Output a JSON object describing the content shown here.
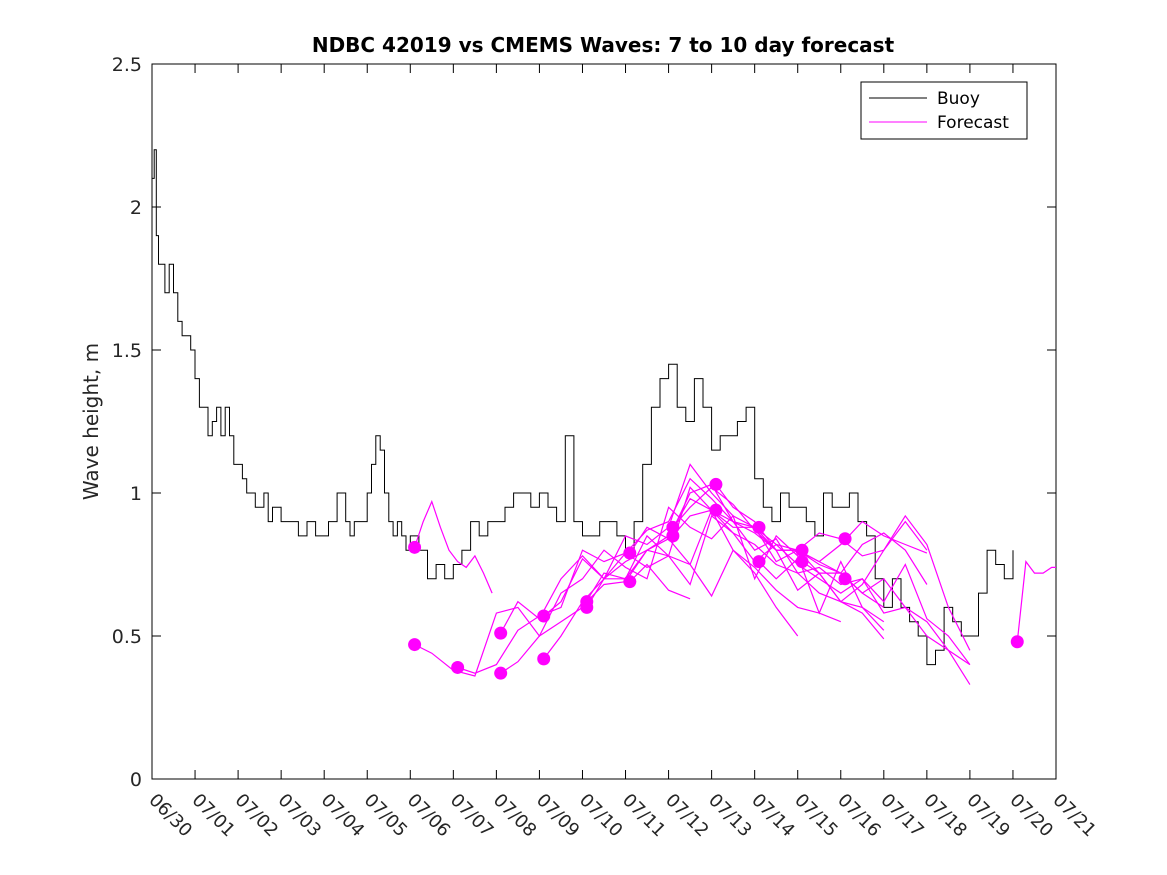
{
  "chart_data": {
    "type": "line",
    "title": "NDBC 42019 vs CMEMS Waves: 7 to 10 day forecast",
    "ylabel": "Wave height, m",
    "xlabel": "",
    "xlim": [
      0,
      21
    ],
    "ylim": [
      0,
      2.5
    ],
    "y_ticks": [
      "0",
      "0.5",
      "1",
      "1.5",
      "2",
      "2.5"
    ],
    "x_ticks": [
      "06/30",
      "07/01",
      "07/02",
      "07/03",
      "07/04",
      "07/05",
      "07/06",
      "07/07",
      "07/08",
      "07/09",
      "07/10",
      "07/11",
      "07/12",
      "07/13",
      "07/14",
      "07/15",
      "07/16",
      "07/17",
      "07/18",
      "07/19",
      "07/20",
      "07/21"
    ],
    "legend": {
      "placement": "top-right",
      "entries": [
        "Buoy",
        "Forecast"
      ]
    },
    "colors": {
      "buoy": "#000000",
      "forecast": "#ff00ff"
    },
    "buoy": {
      "name": "Buoy",
      "x": [
        0,
        0.05,
        0.1,
        0.15,
        0.2,
        0.3,
        0.4,
        0.5,
        0.6,
        0.7,
        0.8,
        0.9,
        1.0,
        1.1,
        1.2,
        1.3,
        1.4,
        1.5,
        1.6,
        1.7,
        1.8,
        1.9,
        2.0,
        2.1,
        2.2,
        2.3,
        2.4,
        2.5,
        2.6,
        2.7,
        2.8,
        3.0,
        3.2,
        3.4,
        3.6,
        3.8,
        4.0,
        4.1,
        4.2,
        4.3,
        4.4,
        4.5,
        4.6,
        4.7,
        4.8,
        4.9,
        5.0,
        5.1,
        5.2,
        5.3,
        5.4,
        5.5,
        5.6,
        5.7,
        5.8,
        5.9,
        6.0,
        6.2,
        6.4,
        6.6,
        6.8,
        7.0,
        7.2,
        7.4,
        7.6,
        7.8,
        8.0,
        8.2,
        8.4,
        8.6,
        8.8,
        9.0,
        9.2,
        9.4,
        9.6,
        9.8,
        10.0,
        10.2,
        10.4,
        10.6,
        10.8,
        11.0,
        11.2,
        11.4,
        11.6,
        11.8,
        12.0,
        12.2,
        12.4,
        12.6,
        12.8,
        13.0,
        13.2,
        13.4,
        13.6,
        13.8,
        14.0,
        14.2,
        14.4,
        14.6,
        14.8,
        15.0,
        15.2,
        15.4,
        15.6,
        15.8,
        16.0,
        16.2,
        16.4,
        16.6,
        16.8,
        17.0,
        17.2,
        17.4,
        17.6,
        17.8,
        18.0,
        18.2,
        18.4,
        18.6,
        18.8,
        19.0,
        19.2,
        19.4,
        19.6,
        19.8,
        20.0
      ],
      "y": [
        2.1,
        2.2,
        1.9,
        1.8,
        1.8,
        1.7,
        1.8,
        1.7,
        1.6,
        1.55,
        1.55,
        1.5,
        1.4,
        1.3,
        1.3,
        1.2,
        1.25,
        1.3,
        1.2,
        1.3,
        1.2,
        1.1,
        1.1,
        1.05,
        1.0,
        1.0,
        0.95,
        0.95,
        1.0,
        0.9,
        0.95,
        0.9,
        0.9,
        0.85,
        0.9,
        0.85,
        0.85,
        0.9,
        0.9,
        1.0,
        1.0,
        0.9,
        0.85,
        0.9,
        0.9,
        0.9,
        1.0,
        1.1,
        1.2,
        1.15,
        1.0,
        0.9,
        0.85,
        0.9,
        0.85,
        0.8,
        0.85,
        0.8,
        0.7,
        0.75,
        0.7,
        0.75,
        0.8,
        0.9,
        0.85,
        0.9,
        0.9,
        0.95,
        1.0,
        1.0,
        0.95,
        1.0,
        0.95,
        0.9,
        1.2,
        0.9,
        0.85,
        0.85,
        0.9,
        0.9,
        0.85,
        0.8,
        0.9,
        1.1,
        1.3,
        1.4,
        1.45,
        1.3,
        1.25,
        1.4,
        1.3,
        1.15,
        1.2,
        1.2,
        1.25,
        1.3,
        1.05,
        0.95,
        0.9,
        1.0,
        0.95,
        0.95,
        0.9,
        0.85,
        1.0,
        0.95,
        0.95,
        1.0,
        0.9,
        0.85,
        0.7,
        0.6,
        0.7,
        0.6,
        0.55,
        0.5,
        0.4,
        0.45,
        0.6,
        0.55,
        0.5,
        0.5,
        0.65,
        0.8,
        0.75,
        0.7,
        0.8
      ]
    },
    "forecast": {
      "name": "Forecast",
      "runs": [
        {
          "x": [
            6.1,
            6.3,
            6.5,
            6.7,
            6.9,
            7.1,
            7.3,
            7.5,
            7.7,
            7.9
          ],
          "y": [
            0.81,
            0.9,
            0.97,
            0.88,
            0.8,
            0.76,
            0.74,
            0.78,
            0.72,
            0.65
          ]
        },
        {
          "x": [
            6.1,
            6.5,
            7.0,
            7.5,
            8.0,
            8.5,
            9.0,
            9.5,
            10.0,
            10.5,
            11.0,
            11.5,
            12.0,
            12.5,
            13.0,
            13.5,
            14.0,
            14.5,
            15.0,
            15.5,
            16.0,
            16.5,
            17.0
          ],
          "y": [
            0.47,
            0.44,
            0.38,
            0.36,
            0.58,
            0.6,
            0.5,
            0.65,
            0.7,
            0.8,
            0.74,
            0.7,
            0.95,
            0.88,
            0.84,
            0.92,
            0.7,
            0.85,
            0.78,
            0.58,
            0.76,
            0.6,
            0.52
          ]
        },
        {
          "x": [
            7.1,
            7.5,
            8.0,
            8.5,
            9.0,
            9.5,
            10.0,
            10.5,
            11.0,
            11.5,
            12.0,
            12.5,
            13.0,
            13.5,
            14.0,
            14.5,
            15.0,
            15.5,
            16.0,
            16.5,
            17.0,
            17.5,
            18.0
          ],
          "y": [
            0.39,
            0.37,
            0.4,
            0.52,
            0.57,
            0.6,
            0.8,
            0.76,
            0.79,
            0.87,
            0.9,
            1.05,
            0.98,
            0.9,
            0.86,
            0.8,
            0.66,
            0.72,
            0.62,
            0.68,
            0.8,
            0.9,
            0.8
          ]
        },
        {
          "x": [
            8.1,
            8.5,
            9.0,
            9.5,
            10.0,
            10.5,
            11.0,
            11.5,
            12.0,
            12.5,
            13.0,
            13.5,
            14.0,
            14.5,
            15.0,
            15.5,
            16.0,
            16.5,
            17.0,
            17.5,
            18.0,
            18.5,
            19.0
          ],
          "y": [
            0.51,
            0.62,
            0.56,
            0.7,
            0.78,
            0.7,
            0.85,
            0.82,
            0.88,
            1.1,
            1.0,
            0.92,
            0.88,
            0.8,
            0.8,
            0.75,
            0.72,
            0.65,
            0.7,
            0.6,
            0.55,
            0.45,
            0.4
          ]
        },
        {
          "x": [
            8.1,
            8.5,
            9.0,
            9.5,
            10.0,
            10.5,
            11.0,
            11.5,
            12.0,
            12.5,
            13.0,
            13.5,
            14.0,
            14.5,
            15.0,
            15.5,
            16.0,
            16.5,
            17.0,
            17.5,
            18.0,
            18.5,
            19.0
          ],
          "y": [
            0.37,
            0.41,
            0.5,
            0.55,
            0.6,
            0.72,
            0.7,
            0.8,
            0.78,
            1.02,
            0.94,
            0.9,
            0.8,
            0.84,
            0.72,
            0.74,
            0.68,
            0.7,
            0.62,
            0.75,
            0.56,
            0.5,
            0.4
          ]
        },
        {
          "x": [
            9.1,
            9.5,
            10.0,
            10.5,
            11.0,
            11.5,
            12.0,
            12.5,
            13.0,
            13.5,
            14.0,
            14.5,
            15.0,
            15.5,
            16.0,
            16.5,
            17.0,
            17.5,
            18.0,
            18.5,
            19.0
          ],
          "y": [
            0.57,
            0.62,
            0.77,
            0.7,
            0.76,
            0.8,
            0.85,
            0.98,
            0.94,
            0.86,
            0.76,
            0.82,
            0.75,
            0.7,
            0.65,
            0.7,
            0.58,
            0.6,
            0.5,
            0.45,
            0.33
          ]
        },
        {
          "x": [
            9.1,
            9.5,
            10.0,
            10.5,
            11.0,
            11.5,
            12.0,
            12.5,
            13.0,
            13.5,
            14.0,
            14.5,
            15.0
          ],
          "y": [
            0.42,
            0.5,
            0.62,
            0.7,
            0.7,
            0.85,
            0.78,
            0.75,
            0.94,
            0.8,
            0.72,
            0.6,
            0.5
          ]
        },
        {
          "x": [
            10.1,
            10.5,
            11.0,
            11.5,
            12.0,
            12.5,
            13.0,
            13.5,
            14.0,
            14.5,
            15.0,
            15.5,
            16.0
          ],
          "y": [
            0.62,
            0.68,
            0.69,
            0.8,
            0.84,
            0.75,
            0.64,
            0.8,
            0.74,
            0.66,
            0.6,
            0.58,
            0.55
          ]
        },
        {
          "x": [
            10.1,
            10.5,
            11.0,
            11.5,
            12.0,
            12.5,
            13.0,
            13.5,
            14.0,
            14.5,
            15.0,
            15.5,
            16.0,
            16.5,
            17.0
          ],
          "y": [
            0.6,
            0.7,
            0.79,
            0.74,
            0.78,
            0.68,
            0.92,
            0.86,
            0.82,
            0.75,
            0.72,
            0.65,
            0.62,
            0.58,
            0.49
          ]
        },
        {
          "x": [
            11.1,
            11.5,
            12.0,
            12.5,
            13.0,
            13.5,
            14.0,
            14.5,
            15.0,
            15.5,
            16.0,
            16.5,
            17.0,
            17.5,
            18.0
          ],
          "y": [
            0.79,
            0.88,
            0.84,
            1.0,
            1.03,
            0.9,
            0.88,
            0.76,
            0.8,
            0.76,
            0.72,
            0.82,
            0.86,
            0.8,
            0.68
          ]
        },
        {
          "x": [
            11.1,
            11.5,
            12.0,
            12.5
          ],
          "y": [
            0.69,
            0.75,
            0.66,
            0.63
          ]
        },
        {
          "x": [
            12.1,
            12.5,
            13.0,
            13.5,
            14.0,
            14.5,
            15.0,
            15.5,
            16.0,
            16.5,
            17.0,
            17.5,
            18.0,
            18.5,
            19.0
          ],
          "y": [
            0.88,
            0.95,
            1.02,
            0.96,
            0.87,
            0.8,
            0.8,
            0.86,
            0.84,
            0.78,
            0.8,
            0.92,
            0.82,
            0.6,
            0.45
          ]
        },
        {
          "x": [
            12.1,
            12.5,
            13.0,
            13.5,
            14.0,
            14.5,
            15.0,
            15.5,
            16.0,
            16.5,
            17.0,
            17.5,
            18.0
          ],
          "y": [
            0.85,
            0.92,
            0.94,
            0.88,
            0.88,
            0.82,
            0.8,
            0.76,
            0.82,
            0.9,
            0.85,
            0.82,
            0.79
          ]
        },
        {
          "x": [
            13.1,
            13.5,
            14.0,
            14.5,
            15.0,
            15.5,
            16.0,
            16.5,
            17.0
          ],
          "y": [
            1.03,
            0.95,
            0.9,
            0.8,
            0.8,
            0.72,
            0.62,
            0.6,
            0.55
          ]
        },
        {
          "x": [
            14.1,
            14.5,
            15.0,
            15.5,
            16.0,
            16.5,
            17.0
          ],
          "y": [
            0.76,
            0.7,
            0.77,
            0.72,
            0.72,
            0.65,
            0.6
          ]
        },
        {
          "x": [
            20.1,
            20.3,
            20.5,
            20.7,
            20.9,
            21.0
          ],
          "y": [
            0.48,
            0.76,
            0.72,
            0.72,
            0.74,
            0.74
          ]
        }
      ],
      "starts": [
        {
          "x": 6.1,
          "y": 0.81
        },
        {
          "x": 6.1,
          "y": 0.47
        },
        {
          "x": 7.1,
          "y": 0.39
        },
        {
          "x": 8.1,
          "y": 0.51
        },
        {
          "x": 8.1,
          "y": 0.37
        },
        {
          "x": 9.1,
          "y": 0.57
        },
        {
          "x": 9.1,
          "y": 0.42
        },
        {
          "x": 10.1,
          "y": 0.62
        },
        {
          "x": 10.1,
          "y": 0.6
        },
        {
          "x": 11.1,
          "y": 0.79
        },
        {
          "x": 11.1,
          "y": 0.69
        },
        {
          "x": 12.1,
          "y": 0.88
        },
        {
          "x": 12.1,
          "y": 0.85
        },
        {
          "x": 13.1,
          "y": 1.03
        },
        {
          "x": 13.1,
          "y": 0.94
        },
        {
          "x": 14.1,
          "y": 0.88
        },
        {
          "x": 14.1,
          "y": 0.76
        },
        {
          "x": 15.1,
          "y": 0.8
        },
        {
          "x": 15.1,
          "y": 0.76
        },
        {
          "x": 16.1,
          "y": 0.84
        },
        {
          "x": 16.1,
          "y": 0.7
        },
        {
          "x": 20.1,
          "y": 0.48
        }
      ]
    }
  }
}
